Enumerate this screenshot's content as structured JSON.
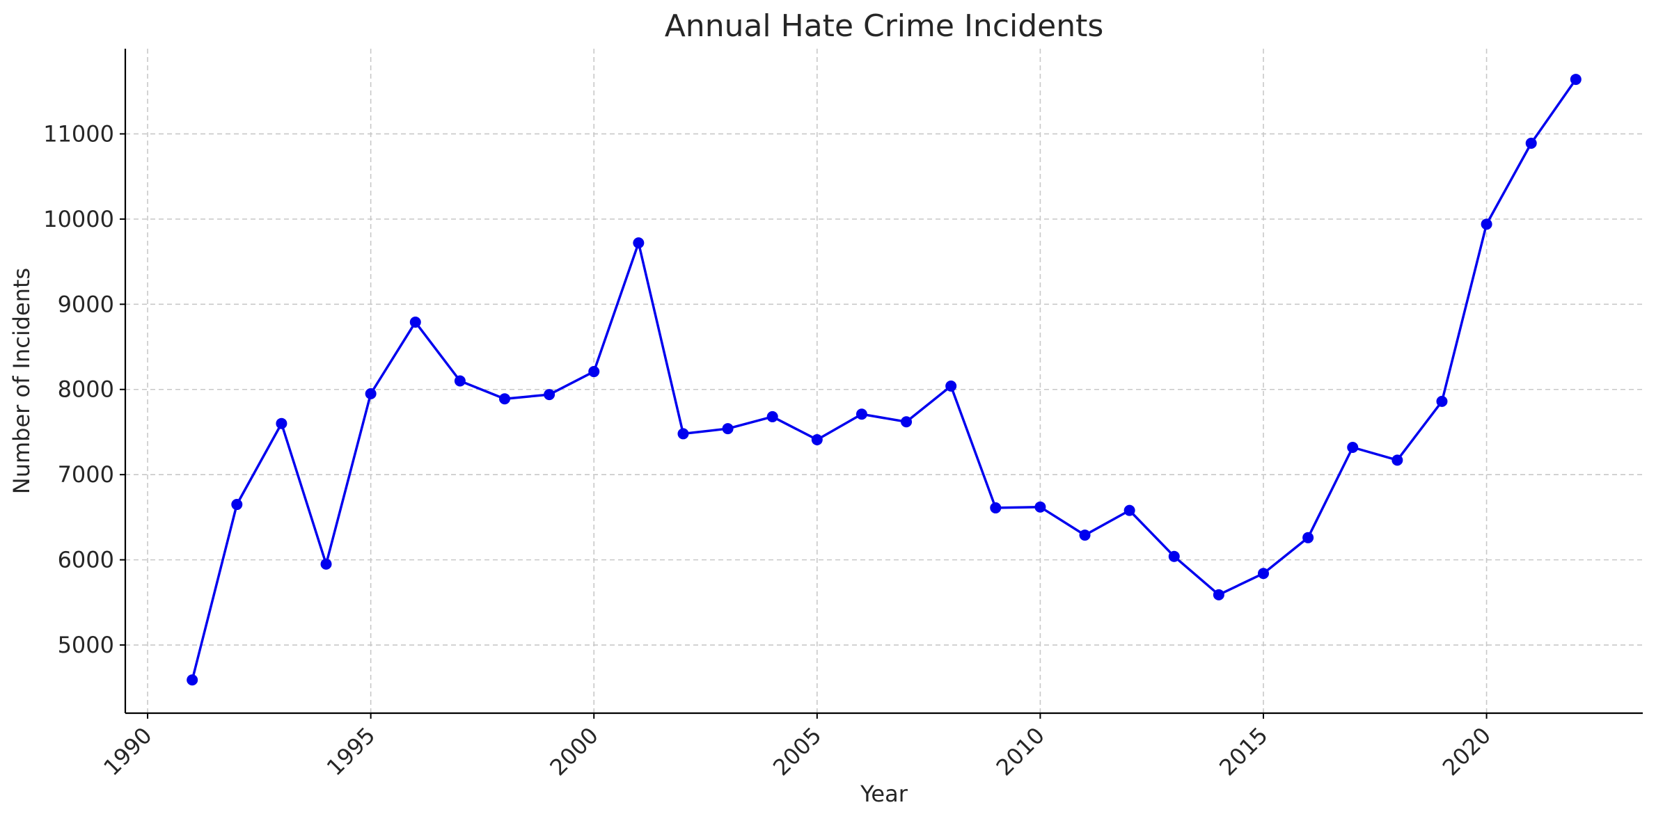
{
  "chart_data": {
    "type": "line",
    "title": "Annual Hate Crime Incidents",
    "xlabel": "Year",
    "ylabel": "Number of Incidents",
    "xlim": [
      1989.5,
      2023.5
    ],
    "ylim": [
      4200,
      12000
    ],
    "x_ticks": [
      1990,
      1995,
      2000,
      2005,
      2010,
      2015,
      2020
    ],
    "y_ticks": [
      5000,
      6000,
      7000,
      8000,
      9000,
      10000,
      11000
    ],
    "grid": true,
    "x_tick_rotation": 45,
    "line_color": "#0000ee",
    "series": [
      {
        "x": [
          1991,
          1992,
          1993,
          1994,
          1995,
          1996,
          1997,
          1998,
          1999,
          2000,
          2001,
          2002,
          2003,
          2004,
          2005,
          2006,
          2007,
          2008,
          2009,
          2010,
          2011,
          2012,
          2013,
          2014,
          2015,
          2016,
          2017,
          2018,
          2019,
          2020,
          2021,
          2022
        ],
        "values": [
          4590,
          6650,
          7600,
          5950,
          7950,
          8790,
          8100,
          7890,
          7940,
          8210,
          9720,
          7480,
          7540,
          7680,
          7410,
          7710,
          7620,
          8040,
          6610,
          6620,
          6290,
          6580,
          6040,
          5590,
          5840,
          6260,
          7320,
          7170,
          7860,
          9940,
          10890,
          11640
        ]
      }
    ]
  }
}
